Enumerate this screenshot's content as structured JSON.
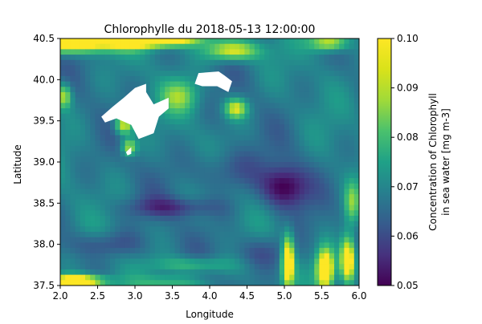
{
  "chart_data": {
    "type": "heatmap",
    "title": "Chlorophylle du 2018-05-13 12:00:00",
    "xlabel": "Longitude",
    "ylabel": "Latitude",
    "xlim": [
      2.0,
      6.0
    ],
    "ylim": [
      37.5,
      40.5
    ],
    "xticks": [
      "2.0",
      "2.5",
      "3.0",
      "3.5",
      "4.0",
      "4.5",
      "5.0",
      "5.5",
      "6.0"
    ],
    "yticks": [
      "37.5",
      "38.0",
      "38.5",
      "39.0",
      "39.5",
      "40.0",
      "40.5"
    ],
    "colorbar": {
      "label_line1": "Concentration of Chlorophyll",
      "label_line2": "in sea water [mg m-3]",
      "range": [
        0.05,
        0.1
      ],
      "ticks": [
        "0.05",
        "0.06",
        "0.07",
        "0.08",
        "0.09",
        "0.10"
      ],
      "colormap": "viridis"
    },
    "colors": {
      "viridis_low": "#440154",
      "viridis_mid": "#21918c",
      "viridis_high": "#fde725",
      "land": "#ffffff"
    },
    "grid": false
  }
}
